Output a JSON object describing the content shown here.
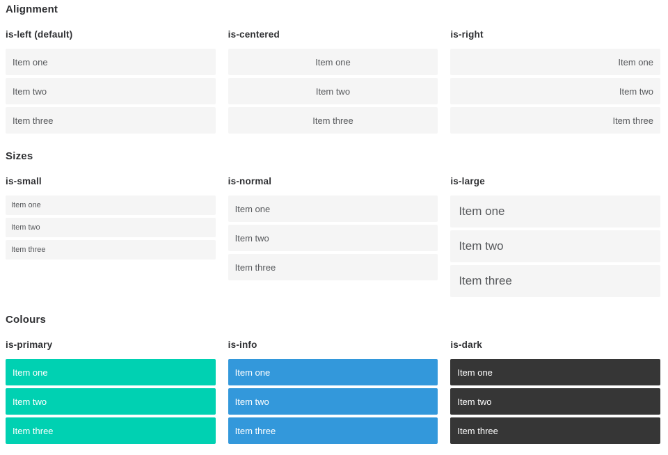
{
  "colors": {
    "primary": "#00d1b2",
    "info": "#3398db",
    "dark": "#363636",
    "item_background": "#f5f5f5",
    "item_text": "#57595c",
    "heading_text": "#2f3033",
    "colored_item_text": "#ffffff"
  },
  "sections": [
    {
      "title": "Alignment",
      "columns": [
        {
          "heading": "is-left (default)",
          "items": [
            "Item one",
            "Item two",
            "Item three"
          ]
        },
        {
          "heading": "is-centered",
          "items": [
            "Item one",
            "Item two",
            "Item three"
          ]
        },
        {
          "heading": "is-right",
          "items": [
            "Item one",
            "Item two",
            "Item three"
          ]
        }
      ]
    },
    {
      "title": "Sizes",
      "columns": [
        {
          "heading": "is-small",
          "items": [
            "Item one",
            "Item two",
            "Item three"
          ]
        },
        {
          "heading": "is-normal",
          "items": [
            "Item one",
            "Item two",
            "Item three"
          ]
        },
        {
          "heading": "is-large",
          "items": [
            "Item one",
            "Item two",
            "Item three"
          ]
        }
      ]
    },
    {
      "title": "Colours",
      "columns": [
        {
          "heading": "is-primary",
          "items": [
            "Item one",
            "Item two",
            "Item three"
          ]
        },
        {
          "heading": "is-info",
          "items": [
            "Item one",
            "Item two",
            "Item three"
          ]
        },
        {
          "heading": "is-dark",
          "items": [
            "Item one",
            "Item two",
            "Item three"
          ]
        }
      ]
    }
  ]
}
